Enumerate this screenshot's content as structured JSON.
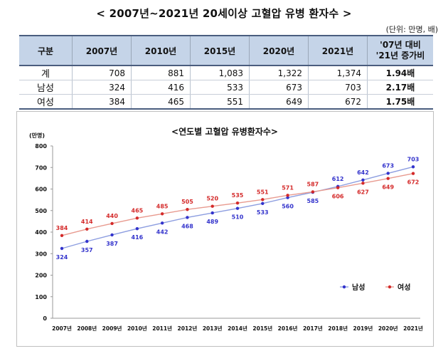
{
  "page_title": "< 2007년~2021년 20세이상 고혈압 유병 환자수 >",
  "unit_note": "(단위: 만명, 배)",
  "table": {
    "headers": [
      "구분",
      "2007년",
      "2010년",
      "2015년",
      "2020년",
      "2021년",
      "'07년 대비\n'21년 증가비"
    ],
    "rows": [
      [
        "계",
        "708",
        "881",
        "1,083",
        "1,322",
        "1,374",
        "1.94배"
      ],
      [
        "남성",
        "324",
        "416",
        "533",
        "673",
        "703",
        "2.17배"
      ],
      [
        "여성",
        "384",
        "465",
        "551",
        "649",
        "672",
        "1.75배"
      ]
    ]
  },
  "chart_data": {
    "type": "line",
    "title": "<연도별 고혈압 유병환자수>",
    "ylabel": "(만명)",
    "xlabel": "",
    "categories": [
      "2007년",
      "2008년",
      "2009년",
      "2010년",
      "2011년",
      "2012년",
      "2013년",
      "2014년",
      "2015년",
      "2016년",
      "2017년",
      "2018년",
      "2019년",
      "2020년",
      "2021년"
    ],
    "ylim": [
      0,
      800
    ],
    "yticks": [
      0,
      100,
      200,
      300,
      400,
      500,
      600,
      700,
      800
    ],
    "grid": false,
    "legend_position": "bottom-right",
    "series": [
      {
        "name": "남성",
        "color": "#3333cc",
        "line_color": "#8c9de0",
        "values": [
          324,
          357,
          387,
          416,
          442,
          468,
          489,
          510,
          533,
          560,
          585,
          612,
          642,
          673,
          703
        ]
      },
      {
        "name": "여성",
        "color": "#d42a2a",
        "line_color": "#e89a8f",
        "values": [
          384,
          414,
          440,
          465,
          485,
          505,
          520,
          535,
          551,
          571,
          587,
          606,
          627,
          649,
          672
        ]
      }
    ]
  }
}
